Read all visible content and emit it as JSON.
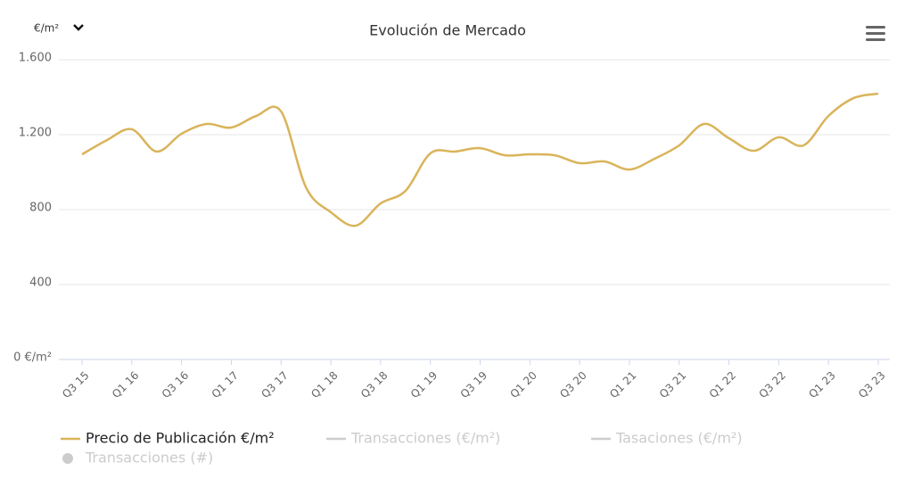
{
  "unit_selector": "€/m²",
  "chart_data": {
    "type": "line",
    "title": "Evolución de Mercado",
    "categories": [
      "Q3 15",
      null,
      "Q1 16",
      null,
      "Q3 16",
      null,
      "Q1 17",
      null,
      "Q3 17",
      null,
      "Q1 18",
      null,
      "Q3 18",
      null,
      "Q1 19",
      null,
      "Q3 19",
      null,
      "Q1 20",
      null,
      "Q3 20",
      null,
      "Q1 21",
      null,
      "Q3 21",
      null,
      "Q1 22",
      null,
      "Q3 22",
      null,
      "Q1 23",
      null,
      "Q3 23"
    ],
    "series": [
      {
        "name": "Precio de Publicación €/m²",
        "color": "#d9b45a",
        "visible": true,
        "marker": "line",
        "values": [
          1095,
          1171,
          1229,
          1110,
          1205,
          1257,
          1238,
          1300,
          1324,
          919,
          786,
          714,
          833,
          900,
          1100,
          1110,
          1128,
          1090,
          1095,
          1090,
          1048,
          1057,
          1014,
          1071,
          1143,
          1257,
          1181,
          1114,
          1186,
          1143,
          1300,
          1395,
          1419
        ]
      },
      {
        "name": "Transacciones (€/m²)",
        "color": "#cccccc",
        "visible": false,
        "marker": "line",
        "values": [
          null,
          null,
          null,
          null,
          null,
          null,
          null,
          null,
          null,
          null,
          null,
          null,
          null,
          null,
          null,
          null,
          null,
          null,
          null,
          null,
          null,
          null,
          null,
          null,
          null,
          null,
          null,
          null,
          null,
          null,
          null,
          null,
          null
        ]
      },
      {
        "name": "Tasaciones (€/m²)",
        "color": "#cccccc",
        "visible": false,
        "marker": "line",
        "values": [
          null,
          null,
          null,
          null,
          null,
          null,
          null,
          null,
          null,
          null,
          null,
          null,
          null,
          null,
          null,
          null,
          null,
          null,
          null,
          null,
          null,
          null,
          null,
          null,
          null,
          null,
          null,
          null,
          null,
          null,
          null,
          null,
          null
        ]
      },
      {
        "name": "Transacciones (#)",
        "color": "#cccccc",
        "visible": false,
        "marker": "circle",
        "values": [
          null,
          null,
          null,
          null,
          null,
          null,
          null,
          null,
          null,
          null,
          null,
          null,
          null,
          null,
          null,
          null,
          null,
          null,
          null,
          null,
          null,
          null,
          null,
          null,
          null,
          null,
          null,
          null,
          null,
          null,
          null,
          null,
          null
        ]
      }
    ],
    "ylim": [
      0,
      1600
    ],
    "yticks": [
      {
        "value": 0,
        "label": "0 €/m²"
      },
      400,
      800,
      {
        "value": 1200,
        "label": "1.200"
      },
      {
        "value": 1600,
        "label": "1.600"
      }
    ],
    "grid": true
  }
}
